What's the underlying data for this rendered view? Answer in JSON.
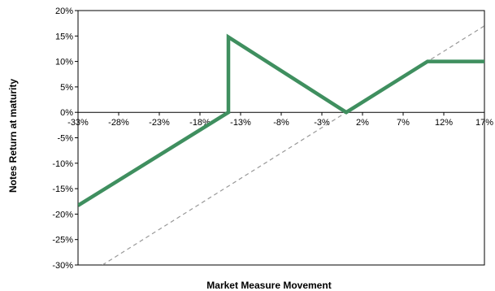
{
  "chart_data": {
    "type": "line",
    "title": "",
    "xlabel": "Market Measure Movement",
    "ylabel": "Notes Return at maturity",
    "xlim": [
      -33,
      17
    ],
    "ylim": [
      -30,
      20
    ],
    "x_ticks": [
      "-33%",
      "-28%",
      "-23%",
      "-18%",
      "-13%",
      "-8%",
      "-3%",
      "2%",
      "7%",
      "12%",
      "17%"
    ],
    "y_ticks": [
      "20%",
      "15%",
      "10%",
      "5%",
      "0%",
      "-5%",
      "-10%",
      "-15%",
      "-20%",
      "-25%",
      "-30%"
    ],
    "grid": false,
    "legend": "none",
    "series": [
      {
        "style": "solid",
        "color": "#3f8f5f",
        "points": [
          [
            -33,
            -18.3
          ],
          [
            -14.5,
            0
          ],
          [
            -14.5,
            14.8
          ],
          [
            0,
            0
          ],
          [
            10,
            10
          ],
          [
            17,
            10
          ]
        ]
      },
      {
        "style": "dashed",
        "color": "#999999",
        "points": [
          [
            -30,
            -30
          ],
          [
            17,
            17
          ]
        ]
      }
    ]
  }
}
